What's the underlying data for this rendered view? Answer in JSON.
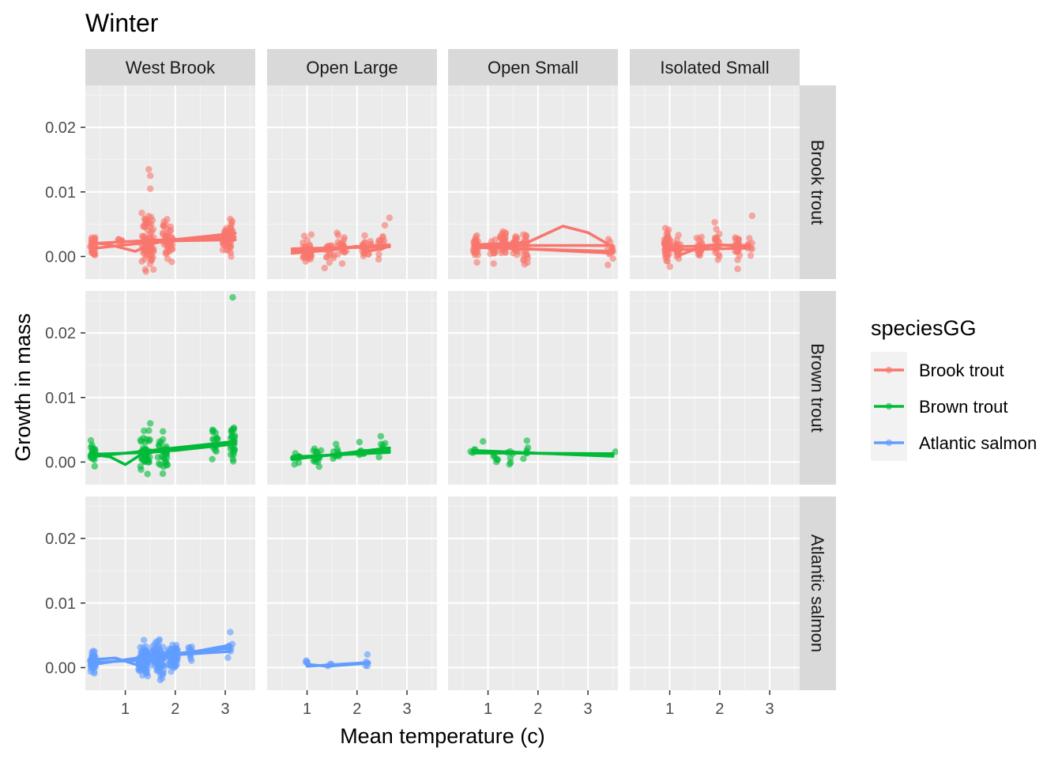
{
  "chart_data": {
    "type": "scatter",
    "title": "Winter",
    "xlabel": "Mean temperature (c)",
    "ylabel": "Growth in mass",
    "xlim": [
      0.2,
      3.6
    ],
    "ylim": [
      -0.0035,
      0.0265
    ],
    "x_ticks": [
      1,
      2,
      3
    ],
    "x_tick_labels": [
      "1",
      "2",
      "3"
    ],
    "y_ticks": [
      0.0,
      0.01,
      0.02
    ],
    "y_tick_labels": [
      "0.00",
      "0.01",
      "0.02"
    ],
    "grid": true,
    "legend": {
      "title": "speciesGG",
      "position": "right"
    },
    "column_facets": [
      "West Brook",
      "Open Large",
      "Open Small",
      "Isolated Small"
    ],
    "row_facets": [
      "Brook trout",
      "Brown trout",
      "Atlantic salmon"
    ],
    "series": [
      {
        "name": "Brook trout",
        "color": "#F8766D"
      },
      {
        "name": "Brown trout",
        "color": "#00BA38"
      },
      {
        "name": "Atlantic salmon",
        "color": "#619CFF"
      }
    ],
    "panels": [
      {
        "row": 0,
        "col": 0,
        "clusters": [
          {
            "x": 0.35,
            "y": 0.0018,
            "sd": 0.0009,
            "n": 30,
            "spread": 0.05
          },
          {
            "x": 0.9,
            "y": 0.0025,
            "sd": 0.0004,
            "n": 6,
            "spread": 0.05
          },
          {
            "x": 1.45,
            "y": 0.0025,
            "sd": 0.002,
            "n": 70,
            "spread": 0.12
          },
          {
            "x": 1.85,
            "y": 0.0025,
            "sd": 0.0015,
            "n": 40,
            "spread": 0.1
          },
          {
            "x": 3.05,
            "y": 0.003,
            "sd": 0.0013,
            "n": 50,
            "spread": 0.1
          }
        ],
        "outliers": [
          {
            "x": 1.47,
            "y": 0.0135
          },
          {
            "x": 1.5,
            "y": 0.0125
          },
          {
            "x": 1.5,
            "y": 0.0105
          },
          {
            "x": 1.4,
            "y": -0.002
          }
        ],
        "lines": [
          [
            [
              0.3,
              0.002
            ],
            [
              1.5,
              0.0025
            ],
            [
              3.2,
              0.003
            ]
          ],
          [
            [
              0.3,
              0.0022
            ],
            [
              0.7,
              0.0018
            ],
            [
              1.2,
              0.0008
            ],
            [
              1.55,
              0.002
            ],
            [
              1.8,
              0.0024
            ],
            [
              3.2,
              0.0026
            ]
          ],
          [
            [
              0.3,
              0.0012
            ],
            [
              1.5,
              0.0022
            ],
            [
              3.2,
              0.0036
            ]
          ]
        ]
      },
      {
        "row": 0,
        "col": 1,
        "clusters": [
          {
            "x": 1.0,
            "y": 0.0008,
            "sd": 0.0009,
            "n": 35,
            "spread": 0.1
          },
          {
            "x": 1.45,
            "y": 0.001,
            "sd": 0.0008,
            "n": 15,
            "spread": 0.1
          },
          {
            "x": 1.7,
            "y": 0.0012,
            "sd": 0.0009,
            "n": 20,
            "spread": 0.1
          },
          {
            "x": 2.2,
            "y": 0.0012,
            "sd": 0.0009,
            "n": 20,
            "spread": 0.1
          },
          {
            "x": 2.5,
            "y": 0.0015,
            "sd": 0.0012,
            "n": 12,
            "spread": 0.08
          }
        ],
        "outliers": [
          {
            "x": 2.65,
            "y": 0.006
          }
        ],
        "lines": [
          [
            [
              0.7,
              0.0009
            ],
            [
              2.65,
              0.0018
            ]
          ],
          [
            [
              0.7,
              0.0005
            ],
            [
              1.5,
              0.001
            ],
            [
              2.0,
              0.0016
            ],
            [
              2.2,
              0.0008
            ],
            [
              2.5,
              0.0012
            ],
            [
              2.65,
              0.0016
            ]
          ],
          [
            [
              0.7,
              0.0012
            ],
            [
              2.65,
              0.0015
            ]
          ]
        ]
      },
      {
        "row": 0,
        "col": 2,
        "clusters": [
          {
            "x": 0.75,
            "y": 0.0015,
            "sd": 0.001,
            "n": 25,
            "spread": 0.05
          },
          {
            "x": 1.1,
            "y": 0.0015,
            "sd": 0.0009,
            "n": 15,
            "spread": 0.06
          },
          {
            "x": 1.3,
            "y": 0.0018,
            "sd": 0.0012,
            "n": 25,
            "spread": 0.06
          },
          {
            "x": 1.55,
            "y": 0.0015,
            "sd": 0.001,
            "n": 20,
            "spread": 0.05
          },
          {
            "x": 1.75,
            "y": 0.0012,
            "sd": 0.001,
            "n": 20,
            "spread": 0.05
          },
          {
            "x": 3.45,
            "y": 0.0008,
            "sd": 0.0008,
            "n": 10,
            "spread": 0.06
          }
        ],
        "outliers": [
          {
            "x": 3.4,
            "y": -0.0013
          },
          {
            "x": 3.5,
            "y": -0.0003
          }
        ],
        "lines": [
          [
            [
              0.7,
              0.0018
            ],
            [
              1.8,
              0.0022
            ],
            [
              2.5,
              0.0047
            ],
            [
              3.0,
              0.0037
            ],
            [
              3.5,
              0.0015
            ]
          ],
          [
            [
              0.7,
              0.0017
            ],
            [
              3.5,
              0.0017
            ]
          ],
          [
            [
              0.7,
              0.0014
            ],
            [
              3.5,
              0.0008
            ]
          ],
          [
            [
              0.7,
              0.0016
            ],
            [
              3.5,
              0.0005
            ]
          ]
        ]
      },
      {
        "row": 0,
        "col": 3,
        "clusters": [
          {
            "x": 0.95,
            "y": 0.0015,
            "sd": 0.0012,
            "n": 40,
            "spread": 0.06
          },
          {
            "x": 1.15,
            "y": 0.0012,
            "sd": 0.0011,
            "n": 20,
            "spread": 0.06
          },
          {
            "x": 1.6,
            "y": 0.0015,
            "sd": 0.0011,
            "n": 25,
            "spread": 0.06
          },
          {
            "x": 1.95,
            "y": 0.0015,
            "sd": 0.0013,
            "n": 20,
            "spread": 0.05
          },
          {
            "x": 2.35,
            "y": 0.0012,
            "sd": 0.0011,
            "n": 20,
            "spread": 0.05
          },
          {
            "x": 2.6,
            "y": 0.0015,
            "sd": 0.0009,
            "n": 8,
            "spread": 0.05
          }
        ],
        "outliers": [
          {
            "x": 2.65,
            "y": 0.0063
          },
          {
            "x": 1.9,
            "y": 0.0053
          }
        ],
        "lines": [
          [
            [
              0.9,
              0.0015
            ],
            [
              1.5,
              0.0016
            ],
            [
              1.9,
              0.0018
            ],
            [
              2.6,
              0.0017
            ]
          ],
          [
            [
              0.9,
              0.002
            ],
            [
              1.2,
              0.0002
            ],
            [
              1.6,
              0.0014
            ],
            [
              2.0,
              0.0018
            ],
            [
              2.6,
              0.0015
            ]
          ],
          [
            [
              0.9,
              0.001
            ],
            [
              2.6,
              0.0013
            ]
          ]
        ]
      },
      {
        "row": 1,
        "col": 0,
        "clusters": [
          {
            "x": 0.35,
            "y": 0.0012,
            "sd": 0.0007,
            "n": 25,
            "spread": 0.05
          },
          {
            "x": 1.4,
            "y": 0.0015,
            "sd": 0.0014,
            "n": 40,
            "spread": 0.1
          },
          {
            "x": 1.75,
            "y": 0.0015,
            "sd": 0.0013,
            "n": 30,
            "spread": 0.1
          },
          {
            "x": 2.8,
            "y": 0.0028,
            "sd": 0.0013,
            "n": 15,
            "spread": 0.06
          },
          {
            "x": 3.15,
            "y": 0.003,
            "sd": 0.0014,
            "n": 25,
            "spread": 0.05
          }
        ],
        "outliers": [
          {
            "x": 3.15,
            "y": 0.0255
          },
          {
            "x": 1.75,
            "y": -0.0018
          },
          {
            "x": 1.5,
            "y": 0.006
          }
        ],
        "lines": [
          [
            [
              0.3,
              0.0012
            ],
            [
              1.5,
              0.0015
            ],
            [
              3.2,
              0.0028
            ]
          ],
          [
            [
              0.3,
              0.0012
            ],
            [
              0.7,
              0.0008
            ],
            [
              1.0,
              -0.0004
            ],
            [
              1.4,
              0.0016
            ],
            [
              2.0,
              0.0018
            ],
            [
              3.2,
              0.0028
            ]
          ],
          [
            [
              0.3,
              0.0008
            ],
            [
              3.2,
              0.0032
            ]
          ]
        ]
      },
      {
        "row": 1,
        "col": 1,
        "clusters": [
          {
            "x": 0.8,
            "y": 0.0006,
            "sd": 0.0006,
            "n": 10,
            "spread": 0.08
          },
          {
            "x": 1.2,
            "y": 0.001,
            "sd": 0.0007,
            "n": 15,
            "spread": 0.08
          },
          {
            "x": 1.6,
            "y": 0.0012,
            "sd": 0.0007,
            "n": 10,
            "spread": 0.08
          },
          {
            "x": 2.1,
            "y": 0.0012,
            "sd": 0.0006,
            "n": 10,
            "spread": 0.08
          },
          {
            "x": 2.5,
            "y": 0.0025,
            "sd": 0.001,
            "n": 8,
            "spread": 0.07
          }
        ],
        "outliers": [],
        "lines": [
          [
            [
              0.7,
              0.0006
            ],
            [
              2.65,
              0.0018
            ]
          ],
          [
            [
              0.7,
              0.0004
            ],
            [
              2.65,
              0.0022
            ]
          ],
          [
            [
              0.7,
              0.0008
            ],
            [
              2.65,
              0.0015
            ]
          ]
        ]
      },
      {
        "row": 1,
        "col": 2,
        "clusters": [
          {
            "x": 0.7,
            "y": 0.0015,
            "sd": 0.0005,
            "n": 4,
            "spread": 0.05
          },
          {
            "x": 1.15,
            "y": 0.0012,
            "sd": 0.0007,
            "n": 6,
            "spread": 0.06
          },
          {
            "x": 1.45,
            "y": 0.0012,
            "sd": 0.0008,
            "n": 6,
            "spread": 0.06
          },
          {
            "x": 1.75,
            "y": 0.0012,
            "sd": 0.0009,
            "n": 6,
            "spread": 0.05
          }
        ],
        "outliers": [
          {
            "x": 0.9,
            "y": 0.0032
          },
          {
            "x": 3.55,
            "y": 0.0016
          }
        ],
        "lines": [
          [
            [
              0.7,
              0.0016
            ],
            [
              3.5,
              0.0011
            ]
          ],
          [
            [
              0.7,
              0.0014
            ],
            [
              3.5,
              0.0013
            ]
          ],
          [
            [
              0.7,
              0.0018
            ],
            [
              3.5,
              0.0009
            ]
          ]
        ]
      },
      {
        "row": 1,
        "col": 3,
        "clusters": [],
        "outliers": [],
        "lines": []
      },
      {
        "row": 2,
        "col": 0,
        "clusters": [
          {
            "x": 0.35,
            "y": 0.0008,
            "sd": 0.0008,
            "n": 40,
            "spread": 0.05
          },
          {
            "x": 1.35,
            "y": 0.0012,
            "sd": 0.0012,
            "n": 80,
            "spread": 0.1
          },
          {
            "x": 1.65,
            "y": 0.0015,
            "sd": 0.0012,
            "n": 90,
            "spread": 0.12
          },
          {
            "x": 1.95,
            "y": 0.0015,
            "sd": 0.0011,
            "n": 60,
            "spread": 0.1
          },
          {
            "x": 2.3,
            "y": 0.002,
            "sd": 0.0007,
            "n": 10,
            "spread": 0.05
          },
          {
            "x": 3.1,
            "y": 0.003,
            "sd": 0.0008,
            "n": 8,
            "spread": 0.05
          }
        ],
        "outliers": [
          {
            "x": 3.1,
            "y": 0.0055
          }
        ],
        "lines": [
          [
            [
              0.3,
              0.0008
            ],
            [
              1.5,
              0.0012
            ],
            [
              3.1,
              0.0035
            ]
          ],
          [
            [
              0.3,
              0.0004
            ],
            [
              1.5,
              0.0018
            ],
            [
              3.1,
              0.003
            ]
          ],
          [
            [
              0.3,
              0.0012
            ],
            [
              0.8,
              0.0015
            ],
            [
              1.2,
              0.0005
            ],
            [
              1.6,
              0.0018
            ],
            [
              3.1,
              0.0025
            ]
          ]
        ]
      },
      {
        "row": 2,
        "col": 1,
        "clusters": [
          {
            "x": 1.0,
            "y": 0.0005,
            "sd": 0.0004,
            "n": 4,
            "spread": 0.04
          },
          {
            "x": 1.45,
            "y": 0.0003,
            "sd": 0.0002,
            "n": 3,
            "spread": 0.05
          },
          {
            "x": 2.2,
            "y": 0.0005,
            "sd": 0.0008,
            "n": 5,
            "spread": 0.04
          }
        ],
        "outliers": [],
        "lines": [
          [
            [
              1.0,
              0.0002
            ],
            [
              2.25,
              0.0008
            ]
          ],
          [
            [
              1.0,
              0.0005
            ],
            [
              1.4,
              0.0002
            ],
            [
              2.25,
              0.0007
            ]
          ]
        ]
      },
      {
        "row": 2,
        "col": 2,
        "clusters": [],
        "outliers": [],
        "lines": []
      },
      {
        "row": 2,
        "col": 3,
        "clusters": [],
        "outliers": [],
        "lines": []
      }
    ]
  }
}
